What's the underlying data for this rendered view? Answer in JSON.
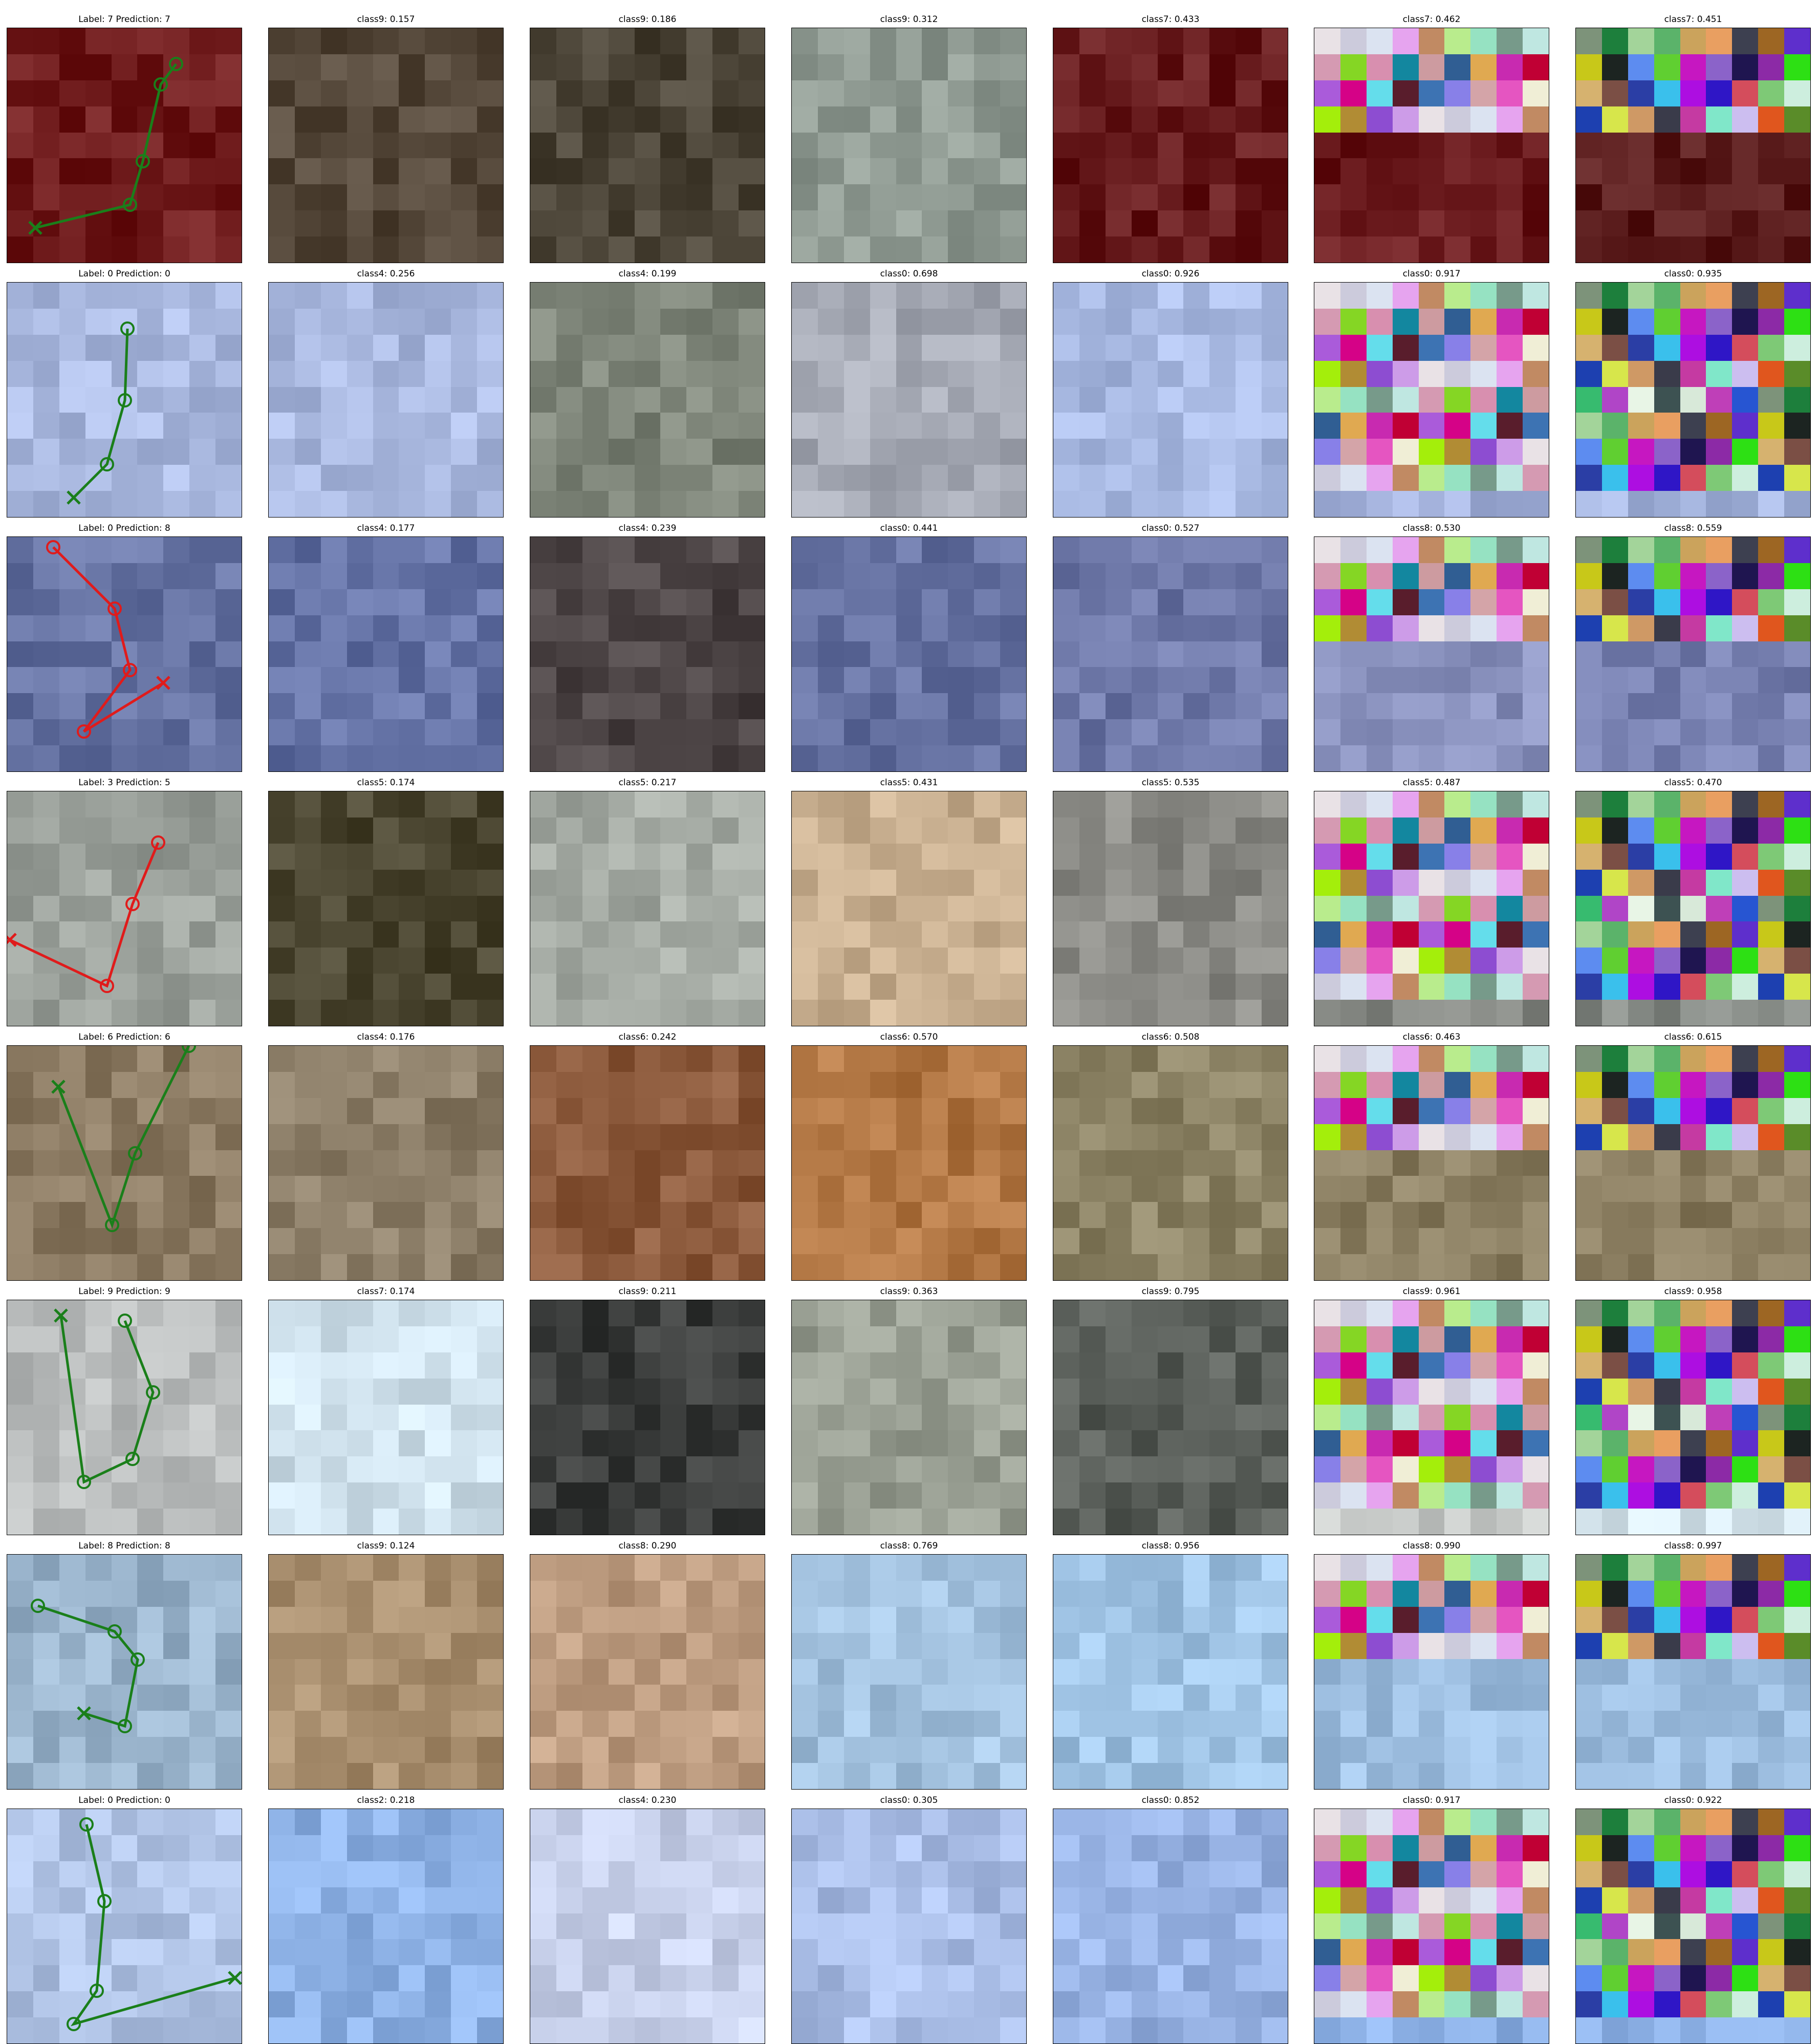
{
  "figure": {
    "rows": [
      {
        "titles": [
          "Label: 7 Prediction: 7",
          "class9: 0.157",
          "class9: 0.186",
          "class9: 0.312",
          "class7: 0.433",
          "class7: 0.462",
          "class7: 0.451"
        ],
        "correct": true,
        "base_colors": [
          "#6f1b1c",
          "#55483a",
          "#4b4437",
          "#8f9a92",
          "#661a1c",
          "#6a1a1d",
          "#5a1c1c"
        ]
      },
      {
        "titles": [
          "Label: 0 Prediction: 0",
          "class4: 0.256",
          "class4: 0.199",
          "class0: 0.698",
          "class0: 0.926",
          "class0: 0.917",
          "class0: 0.935"
        ],
        "correct": true,
        "base_colors": [
          "#aab9e0",
          "#aab9e0",
          "#7e8579",
          "#a6aab5",
          "#a8b9e2",
          "#a4b2dc",
          "#a6b6df"
        ]
      },
      {
        "titles": [
          "Label: 0 Prediction: 8",
          "class4: 0.177",
          "class4: 0.239",
          "class0: 0.441",
          "class0: 0.527",
          "class8: 0.530",
          "class8: 0.559"
        ],
        "correct": false,
        "base_colors": [
          "#6673a3",
          "#6472a5",
          "#4c4445",
          "#6470a0",
          "#6e78a8",
          "#8a92be",
          "#7780b0"
        ]
      },
      {
        "titles": [
          "Label: 3 Prediction: 5",
          "class5: 0.174",
          "class5: 0.217",
          "class5: 0.431",
          "class5: 0.535",
          "class5: 0.487",
          "class5: 0.470"
        ],
        "correct": false,
        "base_colors": [
          "#9aa09a",
          "#4a4530",
          "#a5aba4",
          "#c9b091",
          "#8a8a85",
          "#888b86",
          "#848984"
        ]
      },
      {
        "titles": [
          "Label: 6 Prediction: 6",
          "class4: 0.176",
          "class6: 0.242",
          "class6: 0.570",
          "class6: 0.508",
          "class6: 0.463",
          "class6: 0.615"
        ],
        "correct": true,
        "base_colors": [
          "#8b7a62",
          "#8c7e68",
          "#8c5a3c",
          "#b27744",
          "#8d8466",
          "#8a7e61",
          "#8a7d60"
        ]
      },
      {
        "titles": [
          "Label: 9 Prediction: 9",
          "class7: 0.174",
          "class9: 0.211",
          "class9: 0.363",
          "class9: 0.795",
          "class9: 0.961",
          "class9: 0.958"
        ],
        "correct": true,
        "base_colors": [
          "#b9bcbc",
          "#cfe1ec",
          "#3a3c3b",
          "#9aa094",
          "#5a5f5a",
          "#c9ccca",
          "#d6e6ee"
        ]
      },
      {
        "titles": [
          "Label: 8 Prediction: 8",
          "class9: 0.124",
          "class8: 0.290",
          "class8: 0.769",
          "class8: 0.956",
          "class8: 0.990",
          "class8: 0.997"
        ],
        "correct": true,
        "base_colors": [
          "#9ab4cc",
          "#a88e6e",
          "#bd9c80",
          "#a3c2df",
          "#9fc3e4",
          "#9ebfe1",
          "#9fc0e2"
        ]
      },
      {
        "titles": [
          "Label: 0 Prediction: 0",
          "class2: 0.218",
          "class4: 0.230",
          "class0: 0.305",
          "class0: 0.852",
          "class0: 0.917",
          "class0: 0.922"
        ],
        "correct": true,
        "base_colors": [
          "#b1c4e6",
          "#8eb2e6",
          "#c9d2ec",
          "#a9bde6",
          "#98b3e4",
          "#8fb3e8",
          "#8fb3e8"
        ]
      }
    ],
    "glimpse_colors": [
      "#7d937a",
      "#1d7f3c",
      "#a3d49a",
      "#5bb36a",
      "#cba35c",
      "#e99f61",
      "#3d4050",
      "#9d6623",
      "#5e2fcc",
      "#c8c819",
      "#1c2421",
      "#5d8cf0",
      "#60cf31",
      "#c617c1",
      "#8b63c9",
      "#1f1550",
      "#8c2aa6",
      "#2de014",
      "#d6b26f",
      "#7b4f45",
      "#2b3ea5",
      "#3ac0ec",
      "#ad0ee1",
      "#2f16c6",
      "#d44d5c",
      "#7ec976",
      "#cdeede",
      "#1d40b0",
      "#d7e64b",
      "#cf9965",
      "#3a3b4a",
      "#c53aa2",
      "#80e7c9",
      "#ccbef0",
      "#e0561e",
      "#5a8c29",
      "#37bb6f",
      "#b045c7",
      "#e8f5e6",
      "#3d5252",
      "#d8e9d9",
      "#bf3fb8",
      "#2755d2"
    ],
    "shared_colors": [
      "#e9e2e6",
      "#cccbdc",
      "#dbe3f1",
      "#e6a4ef",
      "#c18a63",
      "#b9ec8d",
      "#96e2c2",
      "#779a8a",
      "#bfe7e1",
      "#d59ab2",
      "#85d624",
      "#d88faf",
      "#13879f",
      "#cd9ba0",
      "#305e93",
      "#e0a951",
      "#c82ab0",
      "#c00034",
      "#aa5bda",
      "#d50287",
      "#64ddeb",
      "#591d2c",
      "#3d73b3",
      "#8880e8",
      "#d4a4a8",
      "#e555c1",
      "#f0eed6",
      "#a4ee0b",
      "#b18c34",
      "#8d4dd1",
      "#cd9ce8"
    ]
  }
}
